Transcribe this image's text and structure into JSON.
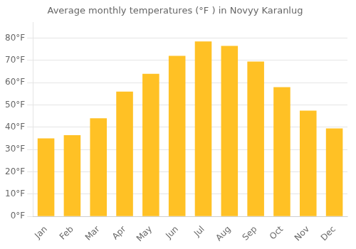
{
  "chart_data": {
    "type": "bar",
    "title": "Average monthly temperatures (°F ) in Novyy Karanlug",
    "categories": [
      "Jan",
      "Feb",
      "Mar",
      "Apr",
      "May",
      "Jun",
      "Jul",
      "Aug",
      "Sep",
      "Oct",
      "Nov",
      "Dec"
    ],
    "values": [
      35,
      36.5,
      44,
      56,
      64,
      72,
      78.5,
      76.5,
      69.5,
      58,
      47.5,
      39.5
    ],
    "color": "#FFC125",
    "ylim": [
      0,
      87
    ],
    "yticks": [
      {
        "value": 0,
        "label": "0°F"
      },
      {
        "value": 10,
        "label": "10°F"
      },
      {
        "value": 20,
        "label": "20°F"
      },
      {
        "value": 30,
        "label": "30°F"
      },
      {
        "value": 40,
        "label": "40°F"
      },
      {
        "value": 50,
        "label": "50°F"
      },
      {
        "value": 60,
        "label": "60°F"
      },
      {
        "value": 70,
        "label": "70°F"
      },
      {
        "value": 80,
        "label": "80°F"
      }
    ],
    "grid": true
  }
}
